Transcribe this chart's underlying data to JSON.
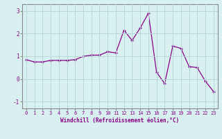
{
  "x": [
    0,
    1,
    2,
    3,
    4,
    5,
    6,
    7,
    8,
    9,
    10,
    11,
    12,
    13,
    14,
    15,
    16,
    17,
    18,
    19,
    20,
    21,
    22,
    23
  ],
  "y": [
    0.85,
    0.75,
    0.75,
    0.82,
    0.82,
    0.82,
    0.85,
    1.0,
    1.05,
    1.05,
    1.2,
    1.15,
    2.15,
    1.7,
    2.25,
    2.9,
    0.3,
    -0.2,
    1.45,
    1.35,
    0.55,
    0.5,
    -0.1,
    -0.55
  ],
  "line_color": "#880088",
  "marker": "+",
  "markersize": 3.5,
  "linewidth": 0.9,
  "xlim": [
    -0.5,
    23.5
  ],
  "ylim": [
    -1.3,
    3.3
  ],
  "yticks": [
    -1,
    0,
    1,
    2,
    3
  ],
  "xticks": [
    0,
    1,
    2,
    3,
    4,
    5,
    6,
    7,
    8,
    9,
    10,
    11,
    12,
    13,
    14,
    15,
    16,
    17,
    18,
    19,
    20,
    21,
    22,
    23
  ],
  "xlabel": "Windchill (Refroidissement éolien,°C)",
  "bg_color": "#d8f0f0",
  "grid_color": "#b8d8d8",
  "spine_color": "#888888",
  "tick_color": "#880088",
  "label_color": "#880088",
  "tick_fontsize": 5.0,
  "xlabel_fontsize": 5.5
}
